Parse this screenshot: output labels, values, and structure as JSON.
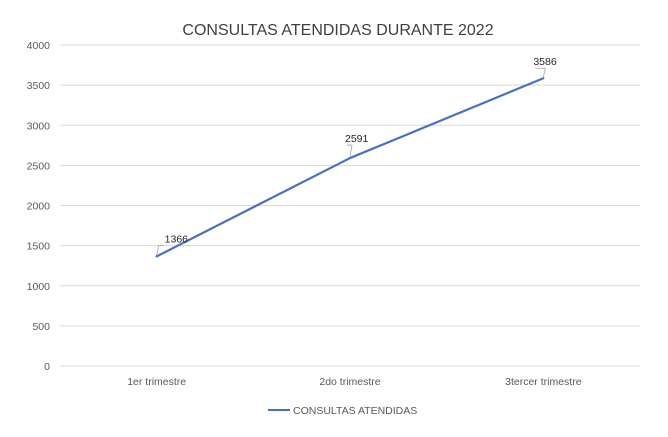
{
  "chart_data": {
    "type": "line",
    "title": "CONSULTAS ATENDIDAS DURANTE 2022",
    "xlabel": "",
    "ylabel": "",
    "categories": [
      "1er trimestre",
      "2do trimestre",
      "3tercer trimestre"
    ],
    "series": [
      {
        "name": "CONSULTAS ATENDIDAS",
        "values": [
          1366,
          2591,
          3586
        ],
        "data_labels": [
          "1366",
          "2591",
          "3586"
        ],
        "color": "#4472c4"
      }
    ],
    "ylim": [
      0,
      4000
    ],
    "yticks": [
      0,
      500,
      1000,
      1500,
      2000,
      2500,
      3000,
      3500,
      4000
    ],
    "ytick_labels": [
      "0",
      "500",
      "1000",
      "1500",
      "2000",
      "2500",
      "3000",
      "3500",
      "4000"
    ],
    "grid": true,
    "legend": "bottom",
    "colors": {
      "gridline": "#d9d9d9",
      "axis_text": "#595959",
      "title_text": "#404040"
    }
  }
}
